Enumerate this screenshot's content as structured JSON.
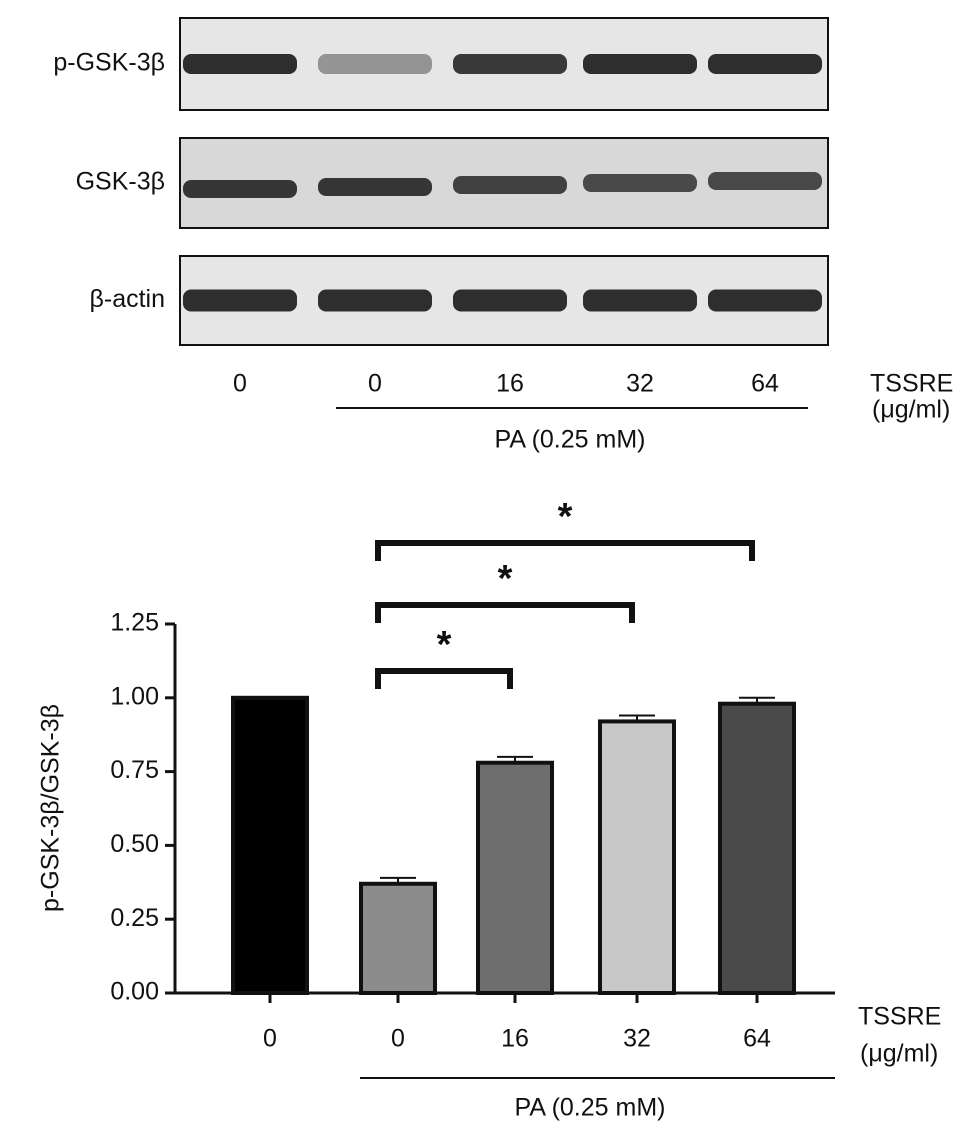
{
  "blot": {
    "rows": [
      "p-GSK-3β",
      "GSK-3β",
      "β-actin"
    ],
    "lanes": [
      "0",
      "0",
      "16",
      "32",
      "64"
    ],
    "x_label": "TSSRE",
    "x_unit": "(μg/ml)",
    "group_label": "PA (0.25 mM)"
  },
  "chart_data": {
    "type": "bar",
    "categories": [
      "0",
      "0",
      "16",
      "32",
      "64"
    ],
    "values": [
      1.0,
      0.37,
      0.78,
      0.92,
      0.98
    ],
    "errors": [
      0,
      0.02,
      0.02,
      0.02,
      0.02
    ],
    "colors": [
      "#000000",
      "#8c8c8c",
      "#6e6e6e",
      "#c8c8c8",
      "#4a4a4a"
    ],
    "ylabel": "p-GSK-3β/GSK-3β",
    "ylim": [
      0,
      1.25
    ],
    "yticks": [
      {
        "value": 0,
        "label": "0.00"
      },
      {
        "value": 0.25,
        "label": "0.25"
      },
      {
        "value": 0.5,
        "label": "0.50"
      },
      {
        "value": 0.75,
        "label": "0.75"
      },
      {
        "value": 1,
        "label": "1.00"
      },
      {
        "value": 1.25,
        "label": "1.25"
      }
    ],
    "x_label": "TSSRE",
    "x_unit": "(μg/ml)",
    "group_label": "PA (0.25 mM)",
    "significance": [
      {
        "from": 1,
        "to": 2,
        "label": "*"
      },
      {
        "from": 1,
        "to": 3,
        "label": "*"
      },
      {
        "from": 1,
        "to": 4,
        "label": "*"
      }
    ]
  }
}
